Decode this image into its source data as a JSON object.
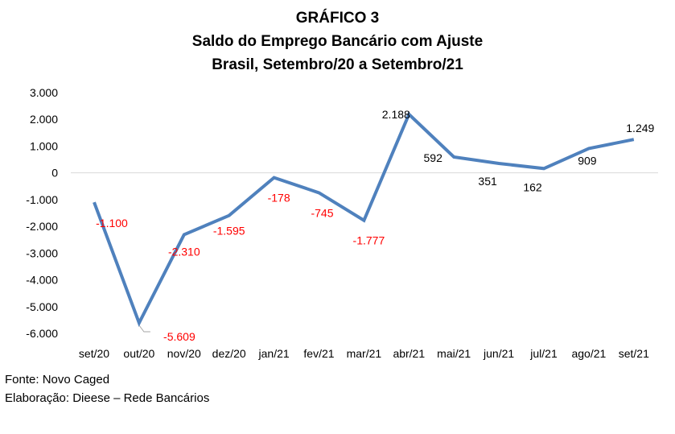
{
  "chart_data": {
    "type": "line",
    "title": "GRÁFICO 3",
    "subtitle": "Saldo do Emprego Bancário com Ajuste",
    "subtitle2": "Brasil, Setembro/20 a Setembro/21",
    "xlabel": "",
    "ylabel": "",
    "categories": [
      "set/20",
      "out/20",
      "nov/20",
      "dez/20",
      "jan/21",
      "fev/21",
      "mar/21",
      "abr/21",
      "mai/21",
      "jun/21",
      "jul/21",
      "ago/21",
      "set/21"
    ],
    "values": [
      -1100,
      -5609,
      -2310,
      -1595,
      -178,
      -745,
      -1777,
      2188,
      592,
      351,
      162,
      909,
      1249
    ],
    "data_labels": [
      "-1.100",
      "-5.609",
      "-2.310",
      "-1.595",
      "-178",
      "-745",
      "-1.777",
      "2.188",
      "592",
      "351",
      "162",
      "909",
      "1.249"
    ],
    "ylim": [
      -6000,
      3000
    ],
    "yticks": [
      3000,
      2000,
      1000,
      0,
      -1000,
      -2000,
      -3000,
      -4000,
      -5000,
      -6000
    ],
    "ytick_labels": [
      "3.000",
      "2.000",
      "1.000",
      "0",
      "-1.000",
      "-2.000",
      "-3.000",
      "-4.000",
      "-5.000",
      "-6.000"
    ],
    "grid": false,
    "legend": "none",
    "colors": {
      "line": "#4f81bd",
      "negative_label": "#ff0000",
      "positive_label": "#000000"
    }
  },
  "footer": {
    "source": "Fonte: Novo Caged",
    "credit": "Elaboração: Dieese – Rede Bancários"
  }
}
